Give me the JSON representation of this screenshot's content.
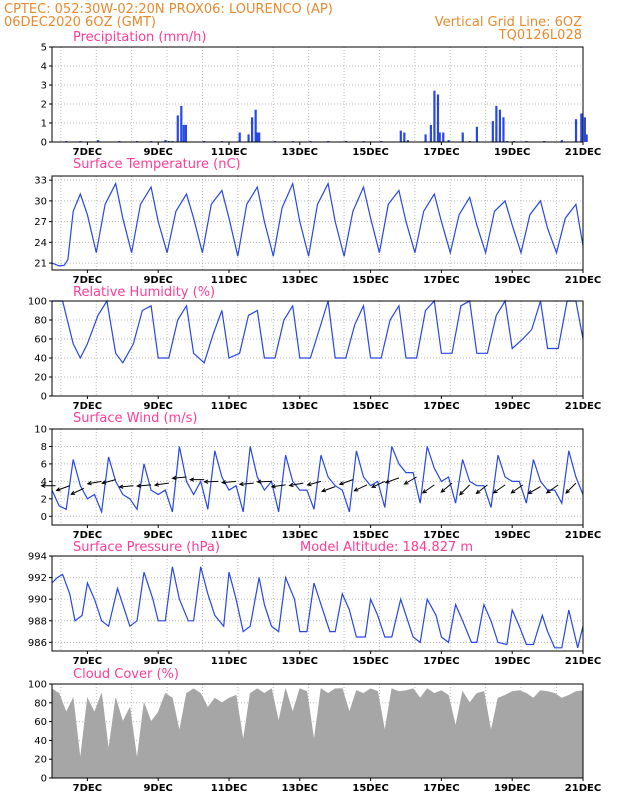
{
  "header": {
    "line1_left": "CPTEC:   052:30W-02:20N   PROX06: LOURENCO (AP)",
    "line2_left": "06DEC2020 6OZ (GMT)",
    "line2_right": "Vertical Grid Line: 6OZ",
    "line3_right": "TQ0126L028"
  },
  "colors": {
    "header": "#e88a2e",
    "panel_title": "#ff3c96",
    "series": "#2747e6",
    "cloud": "#a6a6a6",
    "wind_arrow": "#000000"
  },
  "x_tick_labels": [
    "7DEC",
    "9DEC",
    "11DEC",
    "13DEC",
    "15DEC",
    "17DEC",
    "19DEC",
    "21DEC"
  ],
  "chart_data": [
    {
      "type": "bar",
      "title": "Precipitation (mm/h)",
      "ylim": [
        0,
        5
      ],
      "yticks": [
        0,
        1,
        2,
        3,
        4,
        5
      ],
      "grid": true,
      "x_days": [
        6.4,
        6.8,
        7.3,
        7.9,
        8.4,
        8.8,
        9.2,
        9.3,
        9.4,
        9.55,
        9.65,
        9.72,
        9.78,
        10.3,
        10.8,
        11.3,
        11.55,
        11.65,
        11.75,
        11.8,
        11.85,
        12.3,
        12.8,
        13.3,
        13.8,
        14.3,
        14.8,
        15.3,
        15.85,
        15.95,
        16.05,
        16.55,
        16.7,
        16.8,
        16.9,
        16.95,
        17.05,
        17.2,
        17.6,
        17.8,
        18.0,
        18.45,
        18.55,
        18.65,
        18.75,
        18.85,
        19.05,
        19.4,
        19.9,
        20.4,
        20.8,
        20.95,
        21.05,
        21.1
      ],
      "values": [
        0.05,
        0.05,
        0.1,
        0.05,
        0.05,
        0.05,
        0.1,
        0.05,
        0.05,
        1.4,
        1.9,
        0.9,
        0.9,
        0.05,
        0.05,
        0.5,
        0.4,
        1.3,
        1.7,
        0.5,
        0.5,
        0.05,
        0.05,
        0.05,
        0.05,
        0.05,
        0.05,
        0.05,
        0.6,
        0.5,
        0.1,
        0.4,
        0.9,
        2.7,
        2.5,
        0.5,
        0.5,
        0.1,
        0.5,
        0.05,
        0.8,
        1.1,
        1.9,
        1.7,
        1.3,
        0.05,
        0.05,
        0.05,
        0.05,
        0.1,
        1.2,
        1.5,
        1.3,
        0.4
      ]
    },
    {
      "type": "line",
      "title": "Surface Temperature (nC)",
      "ylim": [
        20,
        33.6
      ],
      "yticks": [
        21,
        24,
        27,
        30,
        33
      ],
      "grid": true,
      "x_days": [
        6.0,
        6.2,
        6.35,
        6.45,
        6.6,
        6.8,
        7.0,
        7.25,
        7.5,
        7.8,
        8.0,
        8.25,
        8.5,
        8.8,
        9.0,
        9.25,
        9.5,
        9.8,
        10.0,
        10.25,
        10.5,
        10.8,
        11.0,
        11.25,
        11.5,
        11.8,
        12.0,
        12.25,
        12.5,
        12.8,
        13.0,
        13.25,
        13.5,
        13.8,
        14.0,
        14.25,
        14.5,
        14.8,
        15.0,
        15.25,
        15.5,
        15.8,
        16.0,
        16.25,
        16.5,
        16.8,
        17.0,
        17.25,
        17.5,
        17.8,
        18.0,
        18.25,
        18.5,
        18.8,
        19.0,
        19.25,
        19.5,
        19.8,
        20.0,
        20.25,
        20.5,
        20.8,
        21.0
      ],
      "values": [
        21.0,
        20.6,
        20.7,
        21.5,
        28.5,
        31.0,
        28.0,
        22.5,
        29.5,
        32.5,
        27.5,
        22.5,
        29.5,
        32.0,
        27.0,
        22.5,
        28.5,
        31.0,
        27.5,
        22.5,
        29.5,
        31.5,
        27.5,
        22.0,
        29.5,
        32.0,
        27.0,
        22.0,
        29.0,
        32.5,
        27.0,
        22.0,
        29.5,
        32.5,
        27.0,
        22.0,
        28.5,
        32.0,
        27.5,
        22.5,
        29.5,
        31.5,
        27.0,
        22.5,
        28.5,
        31.0,
        27.0,
        22.5,
        28.0,
        30.5,
        26.5,
        22.5,
        28.5,
        30.0,
        26.5,
        22.5,
        28.0,
        30.0,
        26.0,
        22.5,
        27.5,
        29.5,
        23.5
      ]
    },
    {
      "type": "line",
      "title": "Relative Humidity (%)",
      "ylim": [
        0,
        100
      ],
      "yticks": [
        0,
        20,
        40,
        60,
        80,
        100
      ],
      "grid": true,
      "x_days": [
        6.0,
        6.3,
        6.6,
        6.8,
        7.0,
        7.3,
        7.55,
        7.8,
        8.0,
        8.3,
        8.55,
        8.8,
        9.0,
        9.3,
        9.55,
        9.8,
        10.0,
        10.3,
        10.55,
        10.8,
        11.0,
        11.3,
        11.55,
        11.8,
        12.0,
        12.3,
        12.55,
        12.8,
        13.0,
        13.3,
        13.55,
        13.8,
        14.0,
        14.3,
        14.55,
        14.8,
        15.0,
        15.3,
        15.55,
        15.8,
        16.0,
        16.3,
        16.55,
        16.8,
        17.0,
        17.3,
        17.55,
        17.8,
        18.0,
        18.3,
        18.55,
        18.8,
        19.0,
        19.3,
        19.55,
        19.8,
        20.0,
        20.3,
        20.55,
        20.8,
        21.0
      ],
      "values": [
        100,
        100,
        55,
        40,
        55,
        85,
        100,
        45,
        35,
        55,
        90,
        95,
        40,
        40,
        80,
        95,
        45,
        35,
        65,
        90,
        40,
        45,
        85,
        90,
        40,
        40,
        80,
        95,
        40,
        40,
        70,
        100,
        40,
        40,
        75,
        95,
        40,
        40,
        80,
        95,
        40,
        40,
        90,
        100,
        45,
        45,
        95,
        100,
        45,
        45,
        85,
        100,
        50,
        60,
        70,
        100,
        50,
        50,
        100,
        100,
        60
      ]
    },
    {
      "type": "line",
      "title": "Surface Wind (m/s)",
      "ylim": [
        -1,
        10
      ],
      "yticks": [
        0,
        2,
        4,
        6,
        8,
        10
      ],
      "grid": true,
      "x_days": [
        6.0,
        6.2,
        6.4,
        6.6,
        6.8,
        7.0,
        7.2,
        7.4,
        7.6,
        7.8,
        8.0,
        8.2,
        8.4,
        8.6,
        8.8,
        9.0,
        9.2,
        9.4,
        9.6,
        9.8,
        10.0,
        10.2,
        10.4,
        10.6,
        10.8,
        11.0,
        11.2,
        11.4,
        11.6,
        11.8,
        12.0,
        12.2,
        12.4,
        12.6,
        12.8,
        13.0,
        13.2,
        13.4,
        13.6,
        13.8,
        14.0,
        14.2,
        14.4,
        14.6,
        14.8,
        15.0,
        15.2,
        15.4,
        15.6,
        15.8,
        16.0,
        16.2,
        16.4,
        16.6,
        16.8,
        17.0,
        17.2,
        17.4,
        17.6,
        17.8,
        18.0,
        18.2,
        18.4,
        18.6,
        18.8,
        19.0,
        19.2,
        19.4,
        19.6,
        19.8,
        20.0,
        20.2,
        20.4,
        20.6,
        20.8,
        21.0
      ],
      "values": [
        3.0,
        1.2,
        0.8,
        6.5,
        3.5,
        2.0,
        2.5,
        0.5,
        6.8,
        4.0,
        2.5,
        2.0,
        0.8,
        6.0,
        3.0,
        2.5,
        3.0,
        0.5,
        8.0,
        4.0,
        2.5,
        4.0,
        0.8,
        7.5,
        4.5,
        3.0,
        3.5,
        0.5,
        8.0,
        4.5,
        3.0,
        4.0,
        0.5,
        7.0,
        4.0,
        3.0,
        3.0,
        0.8,
        7.0,
        4.5,
        3.5,
        3.0,
        0.5,
        7.5,
        4.5,
        3.5,
        4.0,
        1.0,
        8.0,
        6.0,
        5.0,
        5.0,
        1.5,
        8.0,
        5.5,
        4.0,
        4.5,
        1.5,
        6.5,
        4.0,
        3.5,
        3.5,
        1.0,
        7.0,
        4.5,
        4.0,
        4.0,
        1.5,
        6.5,
        4.0,
        3.0,
        3.0,
        1.5,
        7.5,
        4.5,
        2.5
      ],
      "arrow_x_days": [
        6.1,
        6.5,
        6.9,
        7.4,
        7.8,
        8.3,
        8.8,
        9.3,
        9.8,
        10.3,
        10.7,
        11.2,
        11.7,
        12.2,
        12.6,
        13.1,
        13.6,
        14.0,
        14.5,
        14.9,
        15.4,
        15.8,
        16.3,
        16.8,
        17.3,
        17.8,
        18.3,
        18.8,
        19.3,
        19.8,
        20.3,
        20.8
      ],
      "arrow_speeds": [
        3.5,
        3.5,
        3.2,
        4.0,
        4.2,
        3.5,
        3.6,
        3.8,
        4.5,
        4.2,
        4.0,
        4.0,
        3.8,
        4.0,
        3.6,
        3.8,
        4.0,
        3.4,
        4.2,
        3.6,
        4.0,
        4.4,
        4.5,
        3.6,
        3.8,
        3.6,
        3.6,
        3.6,
        3.6,
        3.4,
        3.6,
        3.8
      ],
      "arrow_angles_deg": [
        180,
        200,
        205,
        190,
        195,
        185,
        185,
        188,
        185,
        180,
        182,
        185,
        185,
        182,
        188,
        190,
        195,
        200,
        200,
        205,
        205,
        200,
        210,
        215,
        220,
        225,
        218,
        215,
        215,
        210,
        215,
        225
      ]
    },
    {
      "type": "line",
      "title": "Surface Pressure (hPa)",
      "annotation": "Model Altitude: 184.827 m",
      "ylim": [
        985.2,
        994
      ],
      "yticks": [
        986,
        988,
        990,
        992,
        994
      ],
      "grid": true,
      "x_days": [
        6.0,
        6.15,
        6.3,
        6.5,
        6.65,
        6.85,
        7.0,
        7.2,
        7.4,
        7.6,
        7.85,
        8.0,
        8.2,
        8.4,
        8.6,
        8.85,
        9.0,
        9.2,
        9.4,
        9.6,
        9.85,
        10.0,
        10.2,
        10.4,
        10.6,
        10.85,
        11.0,
        11.2,
        11.4,
        11.6,
        11.85,
        12.0,
        12.2,
        12.4,
        12.6,
        12.85,
        13.0,
        13.2,
        13.4,
        13.6,
        13.85,
        14.0,
        14.2,
        14.4,
        14.6,
        14.85,
        15.0,
        15.2,
        15.4,
        15.6,
        15.85,
        16.0,
        16.2,
        16.4,
        16.6,
        16.85,
        17.0,
        17.2,
        17.4,
        17.6,
        17.85,
        18.0,
        18.2,
        18.4,
        18.6,
        18.85,
        19.0,
        19.2,
        19.4,
        19.6,
        19.85,
        20.0,
        20.2,
        20.4,
        20.6,
        20.85,
        21.0
      ],
      "values": [
        991.5,
        992.0,
        992.3,
        990.5,
        988.0,
        988.5,
        991.5,
        990.0,
        988.0,
        987.5,
        991.0,
        989.5,
        987.5,
        988.0,
        992.5,
        990.0,
        988.0,
        988.0,
        993.0,
        990.0,
        988.0,
        988.0,
        993.0,
        990.5,
        988.5,
        987.5,
        992.5,
        990.0,
        987.0,
        987.5,
        992.0,
        989.5,
        987.5,
        987.0,
        992.0,
        990.0,
        987.0,
        987.0,
        991.5,
        989.5,
        987.0,
        987.0,
        990.5,
        989.0,
        986.5,
        986.5,
        990.0,
        988.5,
        986.5,
        986.5,
        990.0,
        988.5,
        986.5,
        986.0,
        990.0,
        988.5,
        986.5,
        986.0,
        989.5,
        988.0,
        986.0,
        986.0,
        989.5,
        988.0,
        986.0,
        985.8,
        989.0,
        987.5,
        985.8,
        985.8,
        988.5,
        987.0,
        985.5,
        985.5,
        989.0,
        985.5,
        987.5
      ]
    },
    {
      "type": "area",
      "title": "Cloud Cover (%)",
      "ylim": [
        0,
        100
      ],
      "yticks": [
        0,
        20,
        40,
        60,
        80,
        100
      ],
      "grid": true,
      "x_days": [
        6.0,
        6.2,
        6.4,
        6.6,
        6.8,
        7.0,
        7.2,
        7.4,
        7.6,
        7.8,
        8.0,
        8.2,
        8.4,
        8.6,
        8.8,
        9.0,
        9.2,
        9.4,
        9.6,
        9.8,
        10.0,
        10.2,
        10.4,
        10.6,
        10.8,
        11.0,
        11.2,
        11.4,
        11.6,
        11.8,
        12.0,
        12.2,
        12.4,
        12.6,
        12.8,
        13.0,
        13.2,
        13.4,
        13.6,
        13.8,
        14.0,
        14.2,
        14.4,
        14.6,
        14.8,
        15.0,
        15.2,
        15.4,
        15.6,
        15.8,
        16.0,
        16.2,
        16.4,
        16.6,
        16.8,
        17.0,
        17.2,
        17.4,
        17.6,
        17.8,
        18.0,
        18.2,
        18.4,
        18.6,
        18.8,
        19.0,
        19.2,
        19.4,
        19.6,
        19.8,
        20.0,
        20.2,
        20.4,
        20.6,
        20.8,
        21.0
      ],
      "values": [
        95,
        90,
        70,
        85,
        20,
        85,
        70,
        90,
        30,
        85,
        60,
        75,
        20,
        80,
        60,
        70,
        90,
        85,
        50,
        90,
        95,
        90,
        75,
        85,
        80,
        85,
        88,
        40,
        90,
        95,
        90,
        95,
        60,
        95,
        70,
        95,
        92,
        40,
        95,
        90,
        95,
        95,
        70,
        93,
        90,
        95,
        92,
        50,
        95,
        92,
        93,
        95,
        85,
        95,
        90,
        93,
        88,
        55,
        92,
        80,
        90,
        92,
        50,
        85,
        88,
        92,
        93,
        90,
        85,
        93,
        92,
        90,
        85,
        88,
        92,
        93
      ]
    }
  ]
}
